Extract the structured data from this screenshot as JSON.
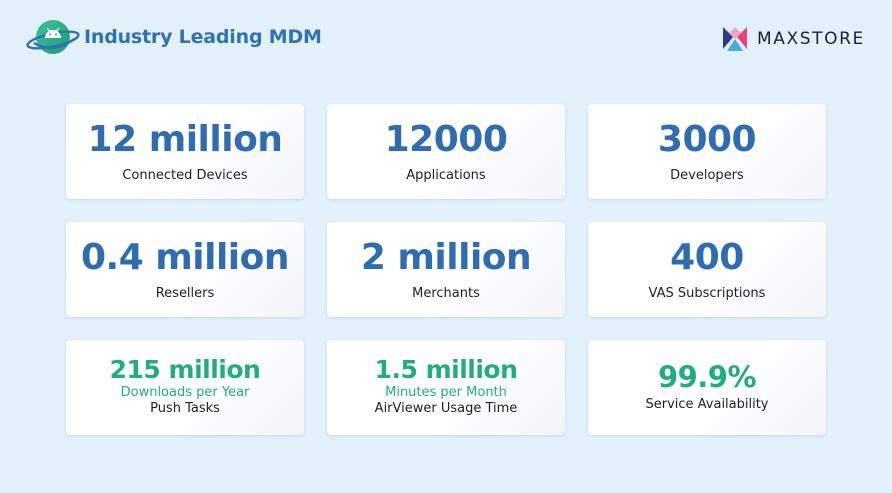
{
  "header": {
    "title": "Industry Leading MDM",
    "brand": "MAXSTORE"
  },
  "icons": {
    "left_logo": "android-planet-icon",
    "brand_logo": "maxstore-logo-icon"
  },
  "colors": {
    "background": "#e3f1fc",
    "title_blue": "#2f72b8",
    "stat_blue": "#2f6cb0",
    "stat_green": "#21ad82",
    "brand_dark": "#1e1e3c"
  },
  "stats": [
    {
      "value": "12 million",
      "label": "Connected Devices"
    },
    {
      "value": "12000",
      "label": "Applications"
    },
    {
      "value": "3000",
      "label": "Developers"
    },
    {
      "value": "0.4 million",
      "label": "Resellers"
    },
    {
      "value": "2 million",
      "label": "Merchants"
    },
    {
      "value": "400",
      "label": "VAS Subscriptions"
    },
    {
      "value": "215 million",
      "sub": "Downloads per Year",
      "label": "Push Tasks"
    },
    {
      "value": "1.5 million",
      "sub": "Minutes per Month",
      "label": "AirViewer Usage Time"
    },
    {
      "value": "99.9%",
      "label": "Service Availability"
    }
  ]
}
